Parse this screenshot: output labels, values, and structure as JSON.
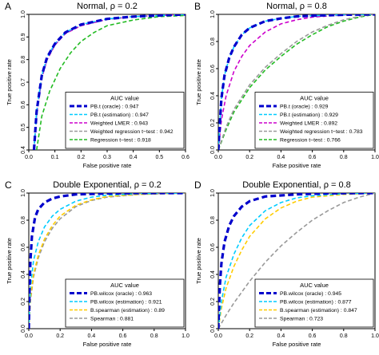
{
  "chart_data": [
    {
      "type": "line",
      "panel_letter": "A",
      "title": "Normal, ρ = 0.2",
      "xlabel": "False positive rate",
      "ylabel": "True positive rate",
      "xlim": [
        0,
        0.6
      ],
      "ylim": [
        0.4,
        1.0
      ],
      "xticks": [
        "0.0",
        "0.1",
        "0.2",
        "0.3",
        "0.4",
        "0.5",
        "0.6"
      ],
      "yticks": [
        "0.4",
        "0.5",
        "0.6",
        "0.7",
        "0.8",
        "0.9",
        "1.0"
      ],
      "legend_title": "AUC value",
      "legend_position": "bottom-right",
      "series": [
        {
          "name": "PB.t (oracle) : 0.947",
          "color": "#0000cc",
          "style": "dashed-thick",
          "x": [
            0.02,
            0.03,
            0.05,
            0.07,
            0.1,
            0.14,
            0.2,
            0.3,
            0.4,
            0.5,
            0.6
          ],
          "y": [
            0.4,
            0.57,
            0.73,
            0.81,
            0.87,
            0.92,
            0.955,
            0.98,
            0.99,
            0.995,
            1.0
          ]
        },
        {
          "name": "PB.t (estimation) : 0.947",
          "color": "#00ccff",
          "style": "dashed",
          "x": [
            0.02,
            0.03,
            0.05,
            0.07,
            0.1,
            0.14,
            0.2,
            0.3,
            0.4,
            0.5,
            0.6
          ],
          "y": [
            0.4,
            0.57,
            0.73,
            0.81,
            0.87,
            0.92,
            0.955,
            0.98,
            0.99,
            0.995,
            1.0
          ]
        },
        {
          "name": "Weighted LMER : 0.943",
          "color": "#cc00cc",
          "style": "dashed",
          "x": [
            0.02,
            0.03,
            0.05,
            0.07,
            0.1,
            0.14,
            0.2,
            0.3,
            0.4,
            0.5,
            0.6
          ],
          "y": [
            0.4,
            0.56,
            0.72,
            0.8,
            0.865,
            0.915,
            0.95,
            0.978,
            0.99,
            0.995,
            1.0
          ]
        },
        {
          "name": "Weighted regression t−test : 0.942",
          "color": "#999999",
          "style": "dashed",
          "x": [
            0.02,
            0.03,
            0.05,
            0.07,
            0.1,
            0.14,
            0.2,
            0.3,
            0.4,
            0.5,
            0.6
          ],
          "y": [
            0.4,
            0.56,
            0.72,
            0.8,
            0.865,
            0.915,
            0.95,
            0.978,
            0.99,
            0.995,
            1.0
          ]
        },
        {
          "name": "Regression t−test : 0.918",
          "color": "#22bb22",
          "style": "dashed",
          "x": [
            0.03,
            0.05,
            0.08,
            0.12,
            0.16,
            0.2,
            0.25,
            0.3,
            0.4,
            0.5,
            0.6
          ],
          "y": [
            0.4,
            0.55,
            0.66,
            0.76,
            0.83,
            0.88,
            0.92,
            0.95,
            0.975,
            0.99,
            0.995
          ]
        }
      ]
    },
    {
      "type": "line",
      "panel_letter": "B",
      "title": "Normal, ρ = 0.8",
      "xlabel": "False positive rate",
      "ylabel": "True positive rate",
      "xlim": [
        0,
        1.0
      ],
      "ylim": [
        0.0,
        1.0
      ],
      "xticks": [
        "0.0",
        "0.2",
        "0.4",
        "0.6",
        "0.8",
        "1.0"
      ],
      "yticks": [
        "0.0",
        "0.2",
        "0.4",
        "0.6",
        "0.8",
        "1.0"
      ],
      "legend_title": "AUC value",
      "legend_position": "bottom-right",
      "series": [
        {
          "name": "PB.t (oracle) : 0.929",
          "color": "#0000cc",
          "style": "dashed-thick",
          "x": [
            0.0,
            0.01,
            0.02,
            0.04,
            0.07,
            0.1,
            0.15,
            0.2,
            0.3,
            0.4,
            0.5,
            0.6,
            0.8,
            1.0
          ],
          "y": [
            0.0,
            0.2,
            0.38,
            0.55,
            0.68,
            0.76,
            0.85,
            0.9,
            0.95,
            0.97,
            0.985,
            0.99,
            0.997,
            1.0
          ]
        },
        {
          "name": "PB.t (estimation) : 0.929",
          "color": "#00ccff",
          "style": "dashed",
          "x": [
            0.0,
            0.01,
            0.02,
            0.04,
            0.07,
            0.1,
            0.15,
            0.2,
            0.3,
            0.4,
            0.5,
            0.6,
            0.8,
            1.0
          ],
          "y": [
            0.0,
            0.2,
            0.38,
            0.55,
            0.68,
            0.76,
            0.85,
            0.9,
            0.95,
            0.97,
            0.985,
            0.99,
            0.997,
            1.0
          ]
        },
        {
          "name": "Weighted LMER : 0.892",
          "color": "#cc00cc",
          "style": "dashed",
          "x": [
            0.0,
            0.02,
            0.05,
            0.1,
            0.15,
            0.2,
            0.3,
            0.4,
            0.5,
            0.6,
            0.8,
            1.0
          ],
          "y": [
            0.0,
            0.22,
            0.4,
            0.58,
            0.69,
            0.77,
            0.87,
            0.93,
            0.96,
            0.98,
            0.995,
            1.0
          ]
        },
        {
          "name": "Weighted regression t−test : 0.783",
          "color": "#999999",
          "style": "dashed",
          "x": [
            0.0,
            0.05,
            0.1,
            0.2,
            0.3,
            0.4,
            0.5,
            0.6,
            0.7,
            0.8,
            0.9,
            1.0
          ],
          "y": [
            0.0,
            0.17,
            0.3,
            0.48,
            0.61,
            0.71,
            0.8,
            0.87,
            0.92,
            0.96,
            0.985,
            1.0
          ]
        },
        {
          "name": "Regression t−test : 0.766",
          "color": "#22bb22",
          "style": "dashed",
          "x": [
            0.0,
            0.05,
            0.1,
            0.2,
            0.3,
            0.4,
            0.5,
            0.6,
            0.7,
            0.8,
            0.9,
            1.0
          ],
          "y": [
            0.0,
            0.15,
            0.28,
            0.46,
            0.59,
            0.69,
            0.78,
            0.85,
            0.91,
            0.95,
            0.98,
            1.0
          ]
        }
      ]
    },
    {
      "type": "line",
      "panel_letter": "C",
      "title": "Double Exponential, ρ = 0.2",
      "xlabel": "False positive rate",
      "ylabel": "True positive rate",
      "xlim": [
        0,
        1.0
      ],
      "ylim": [
        0.0,
        1.0
      ],
      "xticks": [
        "0.0",
        "0.2",
        "0.4",
        "0.6",
        "0.8",
        "1.0"
      ],
      "yticks": [
        "0.0",
        "0.2",
        "0.4",
        "0.6",
        "0.8",
        "1.0"
      ],
      "legend_title": "AUC value",
      "legend_position": "bottom-right",
      "series": [
        {
          "name": "PB.wilcox (oracle) : 0.963",
          "color": "#0000cc",
          "style": "dashed-thick",
          "x": [
            0.0,
            0.005,
            0.01,
            0.02,
            0.04,
            0.06,
            0.1,
            0.15,
            0.2,
            0.3,
            0.5,
            0.7,
            1.0
          ],
          "y": [
            0.0,
            0.3,
            0.5,
            0.68,
            0.82,
            0.88,
            0.93,
            0.96,
            0.975,
            0.99,
            0.997,
            1.0,
            1.0
          ]
        },
        {
          "name": "PB.wilcox (estimation) : 0.921",
          "color": "#00ccff",
          "style": "dashed",
          "x": [
            0.0,
            0.01,
            0.03,
            0.06,
            0.1,
            0.15,
            0.2,
            0.3,
            0.4,
            0.5,
            0.7,
            1.0
          ],
          "y": [
            0.0,
            0.3,
            0.5,
            0.64,
            0.75,
            0.83,
            0.88,
            0.94,
            0.97,
            0.985,
            0.995,
            1.0
          ]
        },
        {
          "name": "B.spearman (estimation) : 0.89",
          "color": "#ffcc00",
          "style": "dashed",
          "x": [
            0.0,
            0.01,
            0.03,
            0.06,
            0.1,
            0.15,
            0.2,
            0.3,
            0.4,
            0.5,
            0.7,
            1.0
          ],
          "y": [
            0.0,
            0.22,
            0.4,
            0.54,
            0.66,
            0.76,
            0.83,
            0.91,
            0.95,
            0.975,
            0.99,
            1.0
          ]
        },
        {
          "name": "Spearman : 0.881",
          "color": "#999999",
          "style": "dashed",
          "x": [
            0.0,
            0.01,
            0.03,
            0.06,
            0.1,
            0.15,
            0.2,
            0.3,
            0.4,
            0.5,
            0.7,
            1.0
          ],
          "y": [
            0.0,
            0.2,
            0.38,
            0.52,
            0.64,
            0.74,
            0.81,
            0.9,
            0.945,
            0.97,
            0.99,
            1.0
          ]
        }
      ]
    },
    {
      "type": "line",
      "panel_letter": "D",
      "title": "Double Exponential, ρ = 0.8",
      "xlabel": "False positive rate",
      "ylabel": "True positive rate",
      "xlim": [
        0,
        1.0
      ],
      "ylim": [
        0.0,
        1.0
      ],
      "xticks": [
        "0.0",
        "0.2",
        "0.4",
        "0.6",
        "0.8",
        "1.0"
      ],
      "yticks": [
        "0.0",
        "0.2",
        "0.4",
        "0.6",
        "0.8",
        "1.0"
      ],
      "legend_title": "AUC value",
      "legend_position": "bottom-right",
      "series": [
        {
          "name": "PB.wilcox (oracle) : 0.945",
          "color": "#0000cc",
          "style": "dashed-thick",
          "x": [
            0.0,
            0.005,
            0.01,
            0.02,
            0.04,
            0.07,
            0.1,
            0.15,
            0.2,
            0.3,
            0.5,
            0.7,
            1.0
          ],
          "y": [
            0.0,
            0.18,
            0.32,
            0.48,
            0.64,
            0.76,
            0.83,
            0.9,
            0.94,
            0.975,
            0.99,
            0.998,
            1.0
          ]
        },
        {
          "name": "PB.wilcox (estimation) : 0.877",
          "color": "#00ccff",
          "style": "dashed",
          "x": [
            0.0,
            0.02,
            0.05,
            0.1,
            0.15,
            0.2,
            0.3,
            0.4,
            0.5,
            0.6,
            0.8,
            1.0
          ],
          "y": [
            0.0,
            0.2,
            0.38,
            0.55,
            0.67,
            0.76,
            0.87,
            0.93,
            0.965,
            0.98,
            0.995,
            1.0
          ]
        },
        {
          "name": "B.spearman (estimation) : 0.847",
          "color": "#ffcc00",
          "style": "dashed",
          "x": [
            0.0,
            0.02,
            0.05,
            0.1,
            0.15,
            0.2,
            0.3,
            0.4,
            0.5,
            0.6,
            0.8,
            1.0
          ],
          "y": [
            0.0,
            0.15,
            0.3,
            0.46,
            0.58,
            0.68,
            0.81,
            0.89,
            0.94,
            0.97,
            0.99,
            1.0
          ]
        },
        {
          "name": "Spearman : 0.723",
          "color": "#999999",
          "style": "dashed",
          "x": [
            0.0,
            0.05,
            0.1,
            0.2,
            0.3,
            0.4,
            0.5,
            0.6,
            0.7,
            0.8,
            0.9,
            1.0
          ],
          "y": [
            0.0,
            0.1,
            0.19,
            0.35,
            0.49,
            0.61,
            0.71,
            0.8,
            0.87,
            0.93,
            0.97,
            1.0
          ]
        }
      ]
    }
  ]
}
